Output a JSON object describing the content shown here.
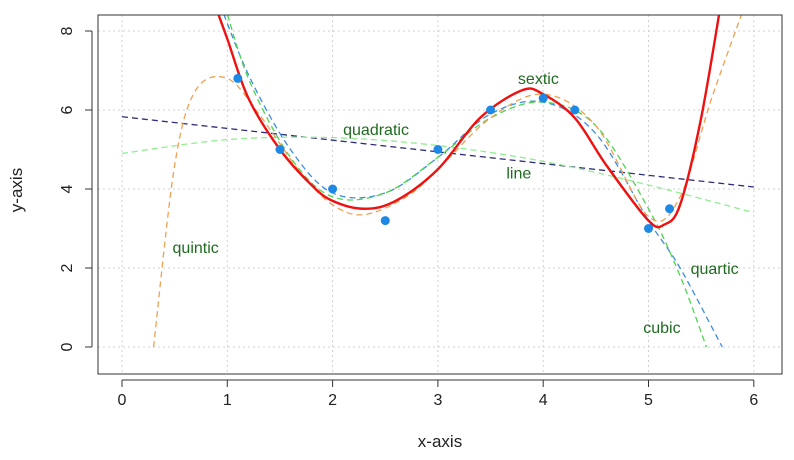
{
  "chart_data": {
    "type": "scatter",
    "xlabel": "x-axis",
    "ylabel": "y-axis",
    "xlim": [
      0,
      6
    ],
    "ylim": [
      0,
      8
    ],
    "x_ticks": [
      0,
      1,
      2,
      3,
      4,
      5,
      6
    ],
    "y_ticks": [
      0,
      2,
      4,
      6,
      8
    ],
    "grid": true,
    "points": {
      "color": "#1e88e5",
      "x": [
        1.1,
        1.5,
        2.0,
        2.5,
        3.0,
        3.5,
        4.0,
        4.3,
        5.0,
        5.2
      ],
      "y": [
        6.8,
        5.0,
        4.0,
        3.2,
        5.0,
        6.0,
        6.3,
        6.0,
        3.0,
        3.5
      ]
    },
    "fits": [
      {
        "name": "line",
        "degree": 1,
        "color": "#2e2e7a",
        "dash": true,
        "x": [
          0,
          6
        ],
        "y": [
          5.83,
          4.05
        ]
      },
      {
        "name": "quadratic",
        "degree": 2,
        "color": "#90ee90",
        "dash": true,
        "x": [
          0,
          1,
          2,
          3,
          4,
          5,
          6
        ],
        "y": [
          4.9,
          5.25,
          5.3,
          5.1,
          4.7,
          4.1,
          3.4
        ]
      },
      {
        "name": "cubic",
        "degree": 3,
        "color": "#3c8ee0",
        "dash": true,
        "x": [
          0.9,
          1.2,
          1.6,
          2.0,
          2.5,
          3.0,
          3.5,
          4.0,
          4.5,
          5.0,
          5.3,
          5.7
        ],
        "y": [
          8.9,
          6.9,
          5.0,
          3.9,
          3.9,
          4.8,
          5.9,
          6.2,
          5.4,
          3.2,
          2.0,
          0
        ]
      },
      {
        "name": "quartic",
        "degree": 4,
        "color": "#4fd44f",
        "dash": true,
        "x": [
          0.95,
          1.2,
          1.6,
          2.0,
          2.5,
          3.0,
          3.5,
          4.0,
          4.5,
          5.0,
          5.3,
          5.55
        ],
        "y": [
          8.9,
          6.8,
          4.8,
          3.8,
          3.9,
          4.8,
          5.8,
          6.2,
          5.6,
          3.5,
          1.8,
          0
        ]
      },
      {
        "name": "quintic",
        "degree": 5,
        "color": "#f0a050",
        "dash": true,
        "x": [
          0.3,
          0.5,
          0.7,
          1.0,
          1.3,
          1.7,
          2.0,
          2.3,
          2.7,
          3.0,
          3.5,
          4.0,
          4.5,
          5.0,
          5.3,
          5.6,
          5.95
        ],
        "y": [
          0,
          4.6,
          6.5,
          6.8,
          5.9,
          4.4,
          3.6,
          3.35,
          3.8,
          4.5,
          5.8,
          6.4,
          5.6,
          3.3,
          3.8,
          6.3,
          8.9
        ]
      },
      {
        "name": "sextic",
        "degree": 6,
        "color": "#ee1111",
        "dash": false,
        "x": [
          0.85,
          1.0,
          1.2,
          1.5,
          1.8,
          2.0,
          2.3,
          2.6,
          3.0,
          3.4,
          3.8,
          4.0,
          4.3,
          4.6,
          5.0,
          5.15,
          5.3,
          5.5,
          5.7
        ],
        "y": [
          8.9,
          7.8,
          6.3,
          5.0,
          4.1,
          3.7,
          3.5,
          3.7,
          4.5,
          5.8,
          6.5,
          6.4,
          5.8,
          4.6,
          3.2,
          3.1,
          3.6,
          5.8,
          8.9
        ]
      }
    ],
    "annotations": [
      {
        "text": "sextic",
        "x": 3.76,
        "y": 6.66
      },
      {
        "text": "quadratic",
        "x": 2.1,
        "y": 5.37
      },
      {
        "text": "line",
        "x": 3.65,
        "y": 4.27
      },
      {
        "text": "quintic",
        "x": 0.48,
        "y": 2.38
      },
      {
        "text": "quartic",
        "x": 5.4,
        "y": 1.85
      },
      {
        "text": "cubic",
        "x": 4.95,
        "y": 0.36
      }
    ]
  }
}
